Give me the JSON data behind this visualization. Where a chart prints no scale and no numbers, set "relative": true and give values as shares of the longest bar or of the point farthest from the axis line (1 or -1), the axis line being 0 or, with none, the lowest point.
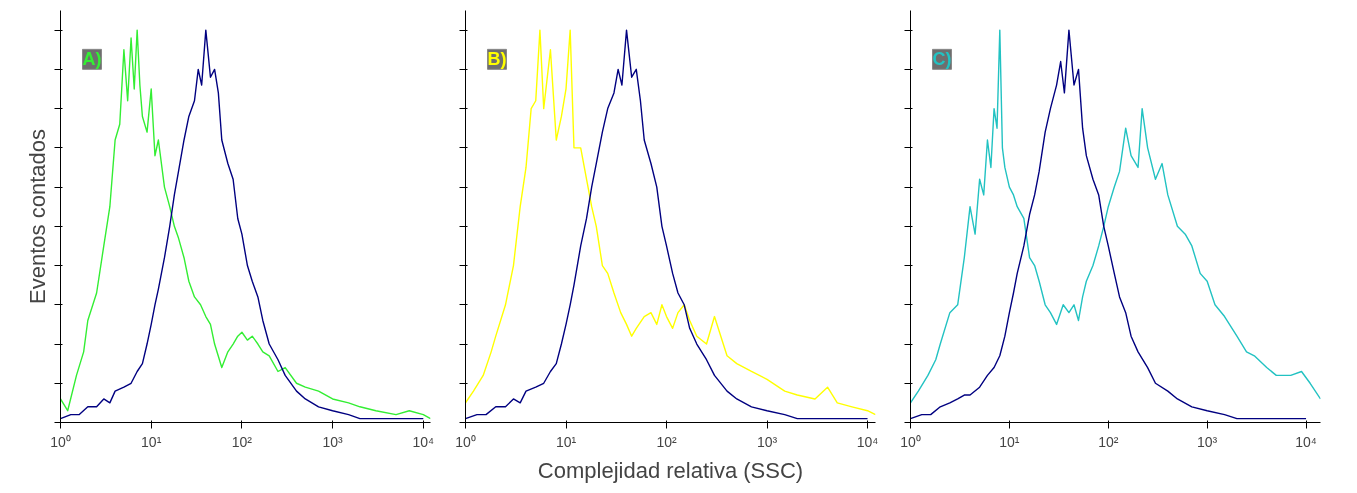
{
  "chart_data": [
    {
      "type": "line",
      "relative": true,
      "log": "x",
      "ylabel": "Eventos contados",
      "annotations": [
        "A)"
      ],
      "tick_labels": "x",
      "grid": false,
      "xlim": [
        1,
        12000
      ],
      "xticks": [
        {
          "value": 1,
          "label": "10⁰"
        },
        {
          "value": 10,
          "label": "10¹"
        },
        {
          "value": 100,
          "label": "10²"
        },
        {
          "value": 1000,
          "label": "10³"
        },
        {
          "value": 10000,
          "label": "10⁴"
        }
      ],
      "series": [
        {
          "color": "#33ee33",
          "x": [
            1,
            1.2,
            1.5,
            1.8,
            2,
            2.5,
            3,
            3.5,
            4,
            4.5,
            5,
            5.5,
            6,
            6.5,
            7,
            7.5,
            8,
            9,
            10,
            11,
            12,
            14,
            16,
            18,
            20,
            23,
            26,
            30,
            35,
            40,
            45,
            50,
            60,
            70,
            80,
            90,
            100,
            115,
            130,
            150,
            170,
            200,
            250,
            300,
            400,
            500,
            700,
            1000,
            1500,
            2000,
            3000,
            5000,
            7000,
            10000,
            12000
          ],
          "values": [
            0.06,
            0.03,
            0.12,
            0.18,
            0.26,
            0.33,
            0.45,
            0.55,
            0.72,
            0.76,
            0.95,
            0.82,
            0.98,
            0.85,
            1.0,
            0.86,
            0.78,
            0.74,
            0.85,
            0.68,
            0.72,
            0.6,
            0.55,
            0.5,
            0.47,
            0.42,
            0.36,
            0.32,
            0.3,
            0.27,
            0.25,
            0.2,
            0.14,
            0.18,
            0.2,
            0.22,
            0.23,
            0.21,
            0.22,
            0.2,
            0.18,
            0.17,
            0.13,
            0.14,
            0.1,
            0.09,
            0.08,
            0.06,
            0.05,
            0.04,
            0.03,
            0.02,
            0.03,
            0.02,
            0.01
          ]
        },
        {
          "color": "#000080",
          "x": [
            1,
            1.3,
            1.6,
            2,
            2.5,
            3,
            3.5,
            4,
            5,
            6,
            7,
            8,
            9,
            10,
            11,
            12,
            14,
            16,
            18,
            20,
            23,
            26,
            30,
            33,
            36,
            40,
            45,
            50,
            55,
            60,
            70,
            80,
            90,
            100,
            115,
            130,
            150,
            170,
            200,
            250,
            300,
            400,
            500,
            700,
            1000,
            1500,
            2000,
            3000,
            5000,
            7000,
            10000
          ],
          "values": [
            0.01,
            0.02,
            0.02,
            0.04,
            0.04,
            0.06,
            0.05,
            0.08,
            0.09,
            0.1,
            0.13,
            0.15,
            0.2,
            0.25,
            0.3,
            0.34,
            0.42,
            0.5,
            0.58,
            0.64,
            0.72,
            0.78,
            0.82,
            0.9,
            0.86,
            1.0,
            0.88,
            0.9,
            0.84,
            0.72,
            0.66,
            0.62,
            0.52,
            0.48,
            0.4,
            0.36,
            0.32,
            0.26,
            0.2,
            0.16,
            0.12,
            0.08,
            0.06,
            0.04,
            0.03,
            0.02,
            0.01,
            0.01,
            0.01,
            0.01,
            0.01
          ]
        }
      ]
    },
    {
      "type": "line",
      "relative": true,
      "log": "x",
      "xlabel": "Complejidad relativa (SSC)",
      "annotations": [
        "B)"
      ],
      "tick_labels": "x",
      "grid": false,
      "xlim": [
        1,
        12000
      ],
      "xticks": [
        {
          "value": 1,
          "label": "10⁰"
        },
        {
          "value": 10,
          "label": "10¹"
        },
        {
          "value": 100,
          "label": "10²"
        },
        {
          "value": 1000,
          "label": "10³"
        },
        {
          "value": 10000,
          "label": "10⁴"
        }
      ],
      "series": [
        {
          "color": "#ffff00",
          "x": [
            1,
            1.2,
            1.5,
            1.8,
            2,
            2.5,
            3,
            3.5,
            4,
            4.5,
            5,
            5.5,
            6,
            7,
            8,
            9,
            10,
            11,
            12,
            14,
            16,
            18,
            20,
            23,
            26,
            30,
            35,
            40,
            45,
            50,
            60,
            70,
            80,
            90,
            100,
            115,
            130,
            150,
            170,
            200,
            250,
            300,
            400,
            500,
            700,
            1000,
            1500,
            2000,
            3000,
            4000,
            5000,
            7000,
            10000,
            12000
          ],
          "values": [
            0.05,
            0.08,
            0.12,
            0.18,
            0.22,
            0.3,
            0.4,
            0.55,
            0.65,
            0.8,
            0.82,
            1.0,
            0.8,
            0.95,
            0.72,
            0.78,
            0.85,
            1.0,
            0.7,
            0.7,
            0.62,
            0.55,
            0.5,
            0.4,
            0.38,
            0.33,
            0.28,
            0.25,
            0.22,
            0.24,
            0.27,
            0.28,
            0.25,
            0.3,
            0.27,
            0.24,
            0.28,
            0.3,
            0.26,
            0.22,
            0.2,
            0.27,
            0.17,
            0.15,
            0.13,
            0.11,
            0.08,
            0.07,
            0.06,
            0.09,
            0.05,
            0.04,
            0.03,
            0.02
          ]
        },
        {
          "color": "#000080",
          "x": [
            1,
            1.3,
            1.6,
            2,
            2.5,
            3,
            3.5,
            4,
            5,
            6,
            7,
            8,
            9,
            10,
            11,
            12,
            14,
            16,
            18,
            20,
            23,
            26,
            30,
            33,
            36,
            40,
            45,
            50,
            55,
            60,
            70,
            80,
            90,
            100,
            115,
            130,
            150,
            170,
            200,
            250,
            300,
            400,
            500,
            700,
            1000,
            1500,
            2000,
            3000,
            5000,
            7000,
            10000
          ],
          "values": [
            0.01,
            0.02,
            0.02,
            0.04,
            0.04,
            0.06,
            0.05,
            0.08,
            0.09,
            0.1,
            0.13,
            0.15,
            0.2,
            0.25,
            0.3,
            0.35,
            0.45,
            0.52,
            0.6,
            0.66,
            0.74,
            0.8,
            0.84,
            0.9,
            0.86,
            1.0,
            0.88,
            0.9,
            0.82,
            0.72,
            0.66,
            0.6,
            0.5,
            0.45,
            0.38,
            0.33,
            0.3,
            0.24,
            0.2,
            0.16,
            0.12,
            0.08,
            0.06,
            0.04,
            0.03,
            0.02,
            0.01,
            0.01,
            0.01,
            0.01,
            0.01
          ]
        }
      ]
    },
    {
      "type": "line",
      "relative": true,
      "log": "x",
      "annotations": [
        "C)"
      ],
      "tick_labels": "x",
      "grid": false,
      "xlim": [
        1,
        14000
      ],
      "xticks": [
        {
          "value": 1,
          "label": "10⁰"
        },
        {
          "value": 10,
          "label": "10¹"
        },
        {
          "value": 100,
          "label": "10²"
        },
        {
          "value": 1000,
          "label": "10³"
        },
        {
          "value": 10000,
          "label": "10⁴"
        }
      ],
      "series": [
        {
          "color": "#22c2c2",
          "x": [
            1,
            1.2,
            1.5,
            1.8,
            2,
            2.5,
            3,
            3.5,
            4,
            4.5,
            5,
            5.5,
            6,
            6.5,
            7,
            7.5,
            8,
            8.5,
            9,
            10,
            11,
            12,
            14,
            16,
            18,
            20,
            23,
            26,
            30,
            35,
            40,
            45,
            50,
            55,
            60,
            70,
            80,
            90,
            100,
            115,
            130,
            150,
            170,
            200,
            220,
            250,
            300,
            350,
            400,
            500,
            600,
            700,
            850,
            1000,
            1200,
            1500,
            2000,
            2500,
            3000,
            4000,
            5000,
            7000,
            9000,
            11000,
            14000
          ],
          "values": [
            0.05,
            0.08,
            0.12,
            0.16,
            0.2,
            0.28,
            0.3,
            0.42,
            0.55,
            0.48,
            0.62,
            0.58,
            0.72,
            0.65,
            0.8,
            0.75,
            1.0,
            0.7,
            0.65,
            0.6,
            0.58,
            0.55,
            0.52,
            0.42,
            0.4,
            0.36,
            0.3,
            0.28,
            0.25,
            0.3,
            0.28,
            0.3,
            0.26,
            0.32,
            0.36,
            0.4,
            0.45,
            0.5,
            0.55,
            0.6,
            0.64,
            0.75,
            0.68,
            0.65,
            0.8,
            0.7,
            0.62,
            0.66,
            0.58,
            0.5,
            0.48,
            0.45,
            0.38,
            0.36,
            0.3,
            0.27,
            0.22,
            0.18,
            0.17,
            0.14,
            0.12,
            0.12,
            0.13,
            0.1,
            0.06
          ]
        },
        {
          "color": "#000080",
          "x": [
            1,
            1.3,
            1.6,
            2,
            2.5,
            3,
            3.5,
            4,
            5,
            6,
            7,
            8,
            9,
            10,
            11,
            12,
            14,
            16,
            18,
            20,
            23,
            26,
            30,
            33,
            36,
            40,
            45,
            50,
            55,
            60,
            70,
            80,
            90,
            100,
            115,
            130,
            150,
            170,
            200,
            250,
            300,
            400,
            500,
            700,
            1000,
            1500,
            2000,
            3000,
            5000,
            7000,
            10000
          ],
          "values": [
            0.01,
            0.02,
            0.02,
            0.04,
            0.05,
            0.06,
            0.07,
            0.07,
            0.09,
            0.12,
            0.14,
            0.17,
            0.22,
            0.28,
            0.33,
            0.38,
            0.45,
            0.53,
            0.58,
            0.64,
            0.74,
            0.8,
            0.86,
            0.92,
            0.84,
            1.0,
            0.86,
            0.9,
            0.75,
            0.68,
            0.62,
            0.58,
            0.5,
            0.45,
            0.38,
            0.32,
            0.28,
            0.22,
            0.18,
            0.14,
            0.1,
            0.08,
            0.06,
            0.04,
            0.03,
            0.02,
            0.01,
            0.01,
            0.01,
            0.01,
            0.01
          ]
        }
      ]
    }
  ]
}
